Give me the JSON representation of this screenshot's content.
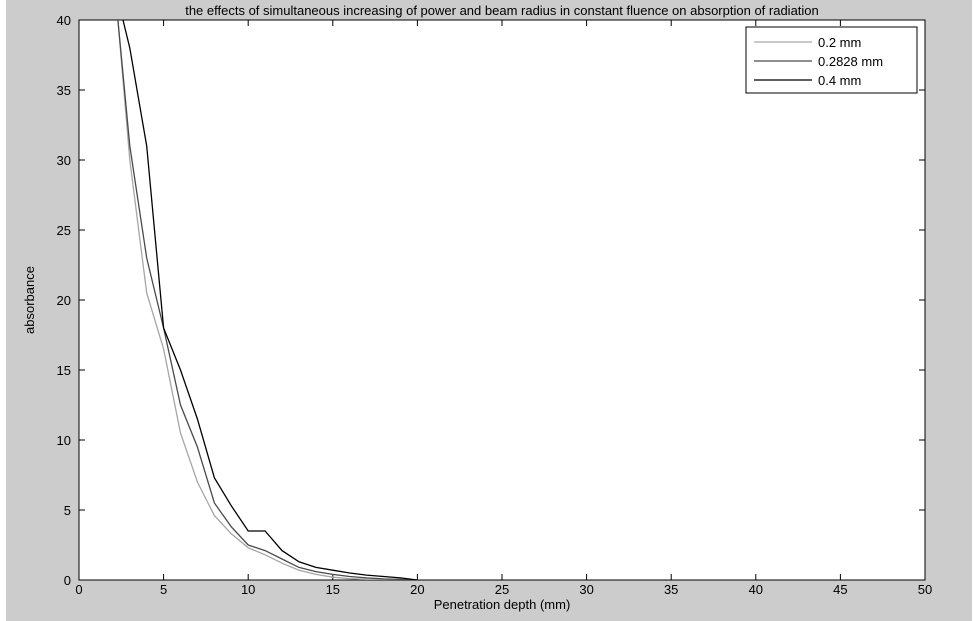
{
  "chart_data": {
    "type": "line",
    "title": "the effects of simultaneous increasing of power and beam radius in constant fluence on absorption of radiation",
    "xlabel": "Penetration depth (mm)",
    "ylabel": "absorbance",
    "xlim": [
      0,
      50
    ],
    "ylim": [
      0,
      40
    ],
    "xticks": [
      0,
      5,
      10,
      15,
      20,
      25,
      30,
      35,
      40,
      45,
      50
    ],
    "yticks": [
      0,
      5,
      10,
      15,
      20,
      25,
      30,
      35,
      40
    ],
    "grid": false,
    "legend_position": "top-right",
    "series": [
      {
        "name": "0.2 mm",
        "color": "#a6a6a6",
        "x": [
          2.3,
          3,
          4,
          5,
          6,
          7,
          8,
          9,
          10,
          11,
          12,
          13,
          14,
          15,
          16,
          17,
          18,
          19,
          20
        ],
        "y": [
          40,
          30,
          20.5,
          16.5,
          10.5,
          7,
          4.6,
          3.3,
          2.3,
          1.8,
          1.2,
          0.7,
          0.4,
          0.2,
          0.1,
          0.05,
          0.02,
          0.01,
          0
        ]
      },
      {
        "name": "0.2828 mm",
        "color": "#4a4a4a",
        "x": [
          2.3,
          3,
          4,
          5,
          6,
          7,
          8,
          9,
          10,
          11,
          12,
          13,
          14,
          15,
          16,
          17,
          18,
          19,
          20
        ],
        "y": [
          40,
          31,
          23,
          18,
          12.5,
          9.5,
          5.5,
          3.8,
          2.5,
          2.1,
          1.5,
          0.9,
          0.6,
          0.4,
          0.25,
          0.15,
          0.08,
          0.04,
          0
        ]
      },
      {
        "name": "0.4 mm",
        "color": "#000000",
        "x": [
          2.6,
          3,
          4,
          5,
          6,
          7,
          8,
          9,
          10,
          11,
          12,
          13,
          14,
          15,
          16,
          17,
          18,
          19,
          20
        ],
        "y": [
          40,
          38,
          31,
          18,
          15,
          11.5,
          7.3,
          5.3,
          3.5,
          3.5,
          2.1,
          1.3,
          0.9,
          0.7,
          0.5,
          0.35,
          0.25,
          0.15,
          0
        ]
      }
    ]
  }
}
